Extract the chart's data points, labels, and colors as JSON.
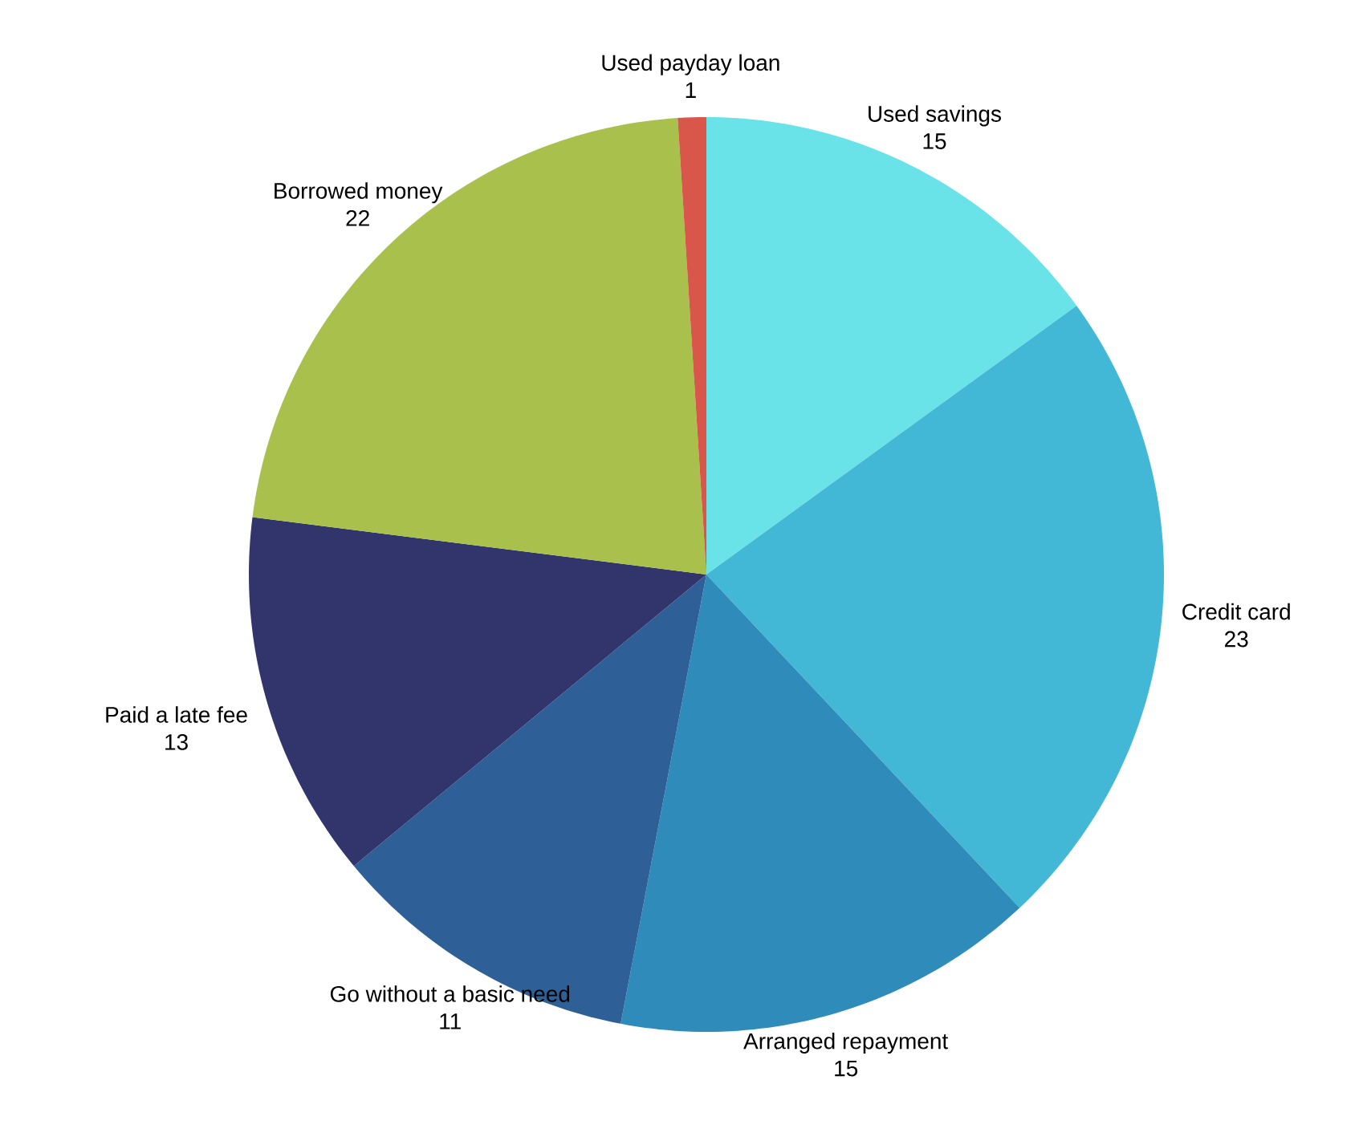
{
  "chart_data": {
    "type": "pie",
    "categories": [
      "Used savings",
      "Credit card",
      "Arranged repayment",
      "Go without a basic need",
      "Paid a late fee",
      "Borrowed money",
      "Used payday loan"
    ],
    "values": [
      15,
      23,
      15,
      11,
      13,
      22,
      1
    ],
    "colors": [
      "#6ae3e8",
      "#42b7d6",
      "#2e8bba",
      "#2e5f96",
      "#31356b",
      "#a9c04c",
      "#d9564b"
    ],
    "data_labels": true
  }
}
